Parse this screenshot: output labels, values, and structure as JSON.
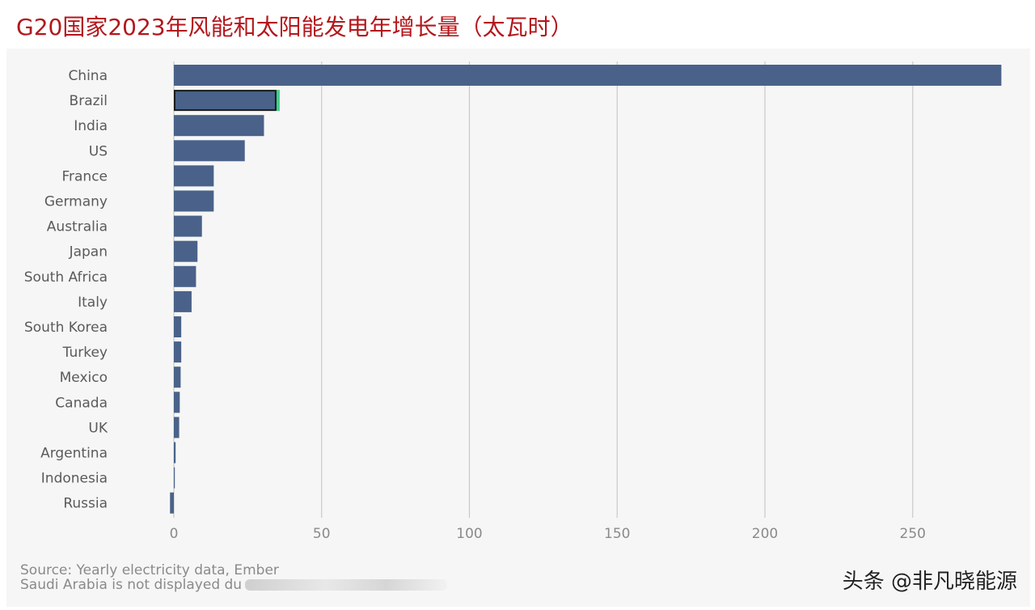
{
  "title": "G20国家2023年风能和太阳能发电年增长量（太瓦时）",
  "source": "Source: Yearly electricity data, Ember",
  "note": "Saudi Arabia is not displayed du",
  "watermark": "头条 @非凡晓能源",
  "colors": {
    "bar": "#4a6289",
    "highlight_outline": "#1b1b1b",
    "highlight_accent": "#3fd08a",
    "grid": "#c9c9c9"
  },
  "chart_data": {
    "type": "bar",
    "orientation": "horizontal",
    "title": "G20国家2023年风能和太阳能发电年增长量（太瓦时）",
    "categories": [
      "China",
      "Brazil",
      "India",
      "US",
      "France",
      "Germany",
      "Australia",
      "Japan",
      "South Africa",
      "Italy",
      "South Korea",
      "Turkey",
      "Mexico",
      "Canada",
      "UK",
      "Argentina",
      "Indonesia",
      "Russia"
    ],
    "values": [
      280,
      35,
      30.5,
      24,
      13.5,
      13.5,
      9.5,
      8,
      7.5,
      6,
      2.5,
      2.5,
      2.3,
      2.0,
      1.8,
      0.6,
      0.2,
      -1.3
    ],
    "highlighted": "Brazil",
    "xlim": [
      0,
      280
    ],
    "xticks": [
      0,
      50,
      100,
      150,
      200,
      250
    ],
    "grid": "vertical",
    "xlabel": "",
    "ylabel": ""
  }
}
